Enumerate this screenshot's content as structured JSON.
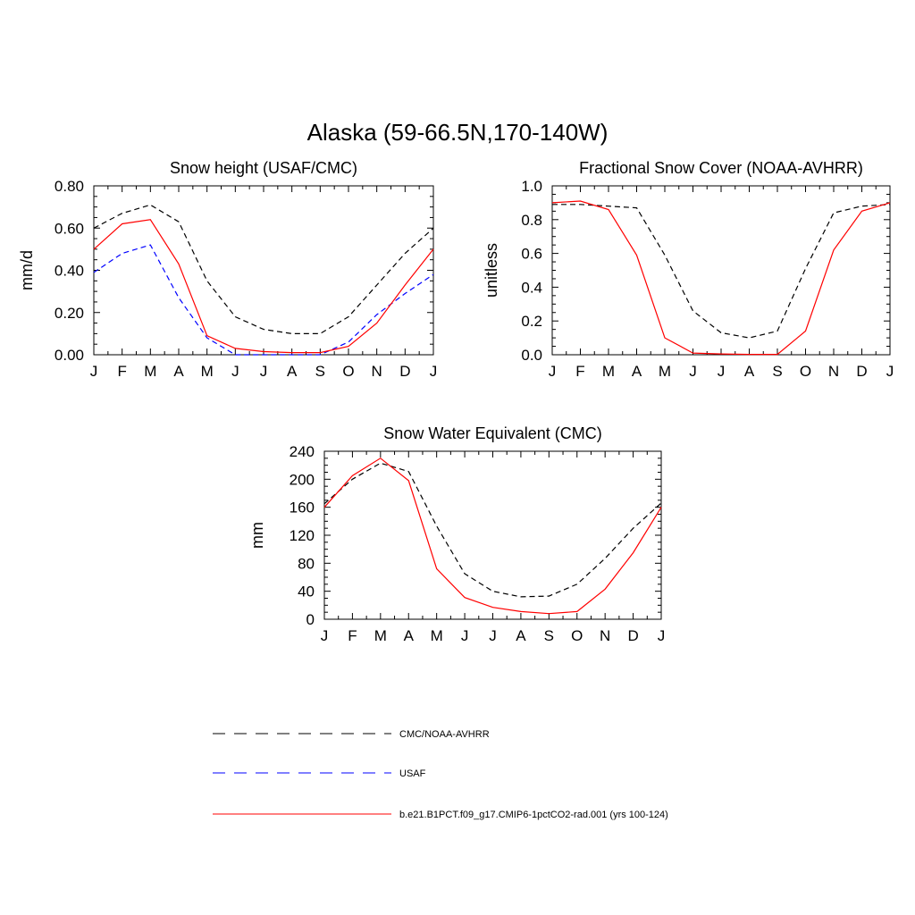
{
  "figure": {
    "title": "Alaska (59-66.5N,170-140W)"
  },
  "month_labels": [
    "J",
    "F",
    "M",
    "A",
    "M",
    "J",
    "J",
    "A",
    "S",
    "O",
    "N",
    "D",
    "J"
  ],
  "legend": {
    "entries": [
      {
        "label": "CMC/NOAA-AVHRR",
        "color": "#000000",
        "dash": "dashed"
      },
      {
        "label": "USAF",
        "color": "#0000ff",
        "dash": "dashed"
      },
      {
        "label": "b.e21.B1PCT.f09_g17.CMIP6-1pctCO2-rad.001 (yrs 100-124)",
        "color": "#ff0000",
        "dash": "solid"
      }
    ]
  },
  "chart_data": [
    {
      "type": "line",
      "title": "Snow height (USAF/CMC)",
      "ylabel": "mm/d",
      "xlabel": "",
      "x": [
        "J",
        "F",
        "M",
        "A",
        "M",
        "J",
        "J",
        "A",
        "S",
        "O",
        "N",
        "D",
        "J"
      ],
      "ylim": [
        0,
        0.8
      ],
      "yticks": [
        "0.00",
        "0.20",
        "0.40",
        "0.60",
        "0.80"
      ],
      "yticks_values": [
        0,
        0.2,
        0.4,
        0.6,
        0.8
      ],
      "series": [
        {
          "name": "CMC/NOAA-AVHRR",
          "color": "#000000",
          "dash": "dashed",
          "values": [
            0.6,
            0.67,
            0.71,
            0.63,
            0.35,
            0.18,
            0.12,
            0.1,
            0.1,
            0.18,
            0.33,
            0.48,
            0.6
          ]
        },
        {
          "name": "USAF",
          "color": "#0000ff",
          "dash": "dashed",
          "values": [
            0.39,
            0.48,
            0.52,
            0.27,
            0.08,
            0.0,
            0.0,
            0.0,
            0.0,
            0.06,
            0.19,
            0.29,
            0.38
          ]
        },
        {
          "name": "b.e21.B1PCT.f09_g17.CMIP6-1pctCO2-rad.001 (yrs 100-124)",
          "color": "#ff0000",
          "dash": "solid",
          "values": [
            0.5,
            0.62,
            0.64,
            0.43,
            0.09,
            0.03,
            0.015,
            0.01,
            0.01,
            0.04,
            0.15,
            0.33,
            0.5
          ]
        }
      ]
    },
    {
      "type": "line",
      "title": "Fractional Snow Cover (NOAA-AVHRR)",
      "ylabel": "unitless",
      "xlabel": "",
      "x": [
        "J",
        "F",
        "M",
        "A",
        "M",
        "J",
        "J",
        "A",
        "S",
        "O",
        "N",
        "D",
        "J"
      ],
      "ylim": [
        0,
        1.0
      ],
      "yticks": [
        "0.0",
        "0.2",
        "0.4",
        "0.6",
        "0.8",
        "1.0"
      ],
      "yticks_values": [
        0,
        0.2,
        0.4,
        0.6,
        0.8,
        1.0
      ],
      "series": [
        {
          "name": "CMC/NOAA-AVHRR",
          "color": "#000000",
          "dash": "dashed",
          "values": [
            0.89,
            0.89,
            0.88,
            0.87,
            0.59,
            0.26,
            0.13,
            0.1,
            0.14,
            0.51,
            0.84,
            0.88,
            0.89
          ]
        },
        {
          "name": "b.e21.B1PCT.f09_g17.CMIP6-1pctCO2-rad.001 (yrs 100-124)",
          "color": "#ff0000",
          "dash": "solid",
          "values": [
            0.9,
            0.91,
            0.86,
            0.59,
            0.1,
            0.01,
            0.005,
            0.002,
            0.002,
            0.14,
            0.62,
            0.85,
            0.9
          ]
        }
      ]
    },
    {
      "type": "line",
      "title": "Snow Water Equivalent (CMC)",
      "ylabel": "mm",
      "xlabel": "",
      "x": [
        "J",
        "F",
        "M",
        "A",
        "M",
        "J",
        "J",
        "A",
        "S",
        "O",
        "N",
        "D",
        "J"
      ],
      "ylim": [
        0,
        240
      ],
      "yticks": [
        "0",
        "40",
        "80",
        "120",
        "160",
        "200",
        "240"
      ],
      "yticks_values": [
        0,
        40,
        80,
        120,
        160,
        200,
        240
      ],
      "series": [
        {
          "name": "CMC/NOAA-AVHRR",
          "color": "#000000",
          "dash": "dashed",
          "values": [
            165,
            200,
            223,
            211,
            133,
            65,
            40,
            32,
            33,
            50,
            87,
            130,
            166
          ]
        },
        {
          "name": "b.e21.B1PCT.f09_g17.CMIP6-1pctCO2-rad.001 (yrs 100-124)",
          "color": "#ff0000",
          "dash": "solid",
          "values": [
            160,
            205,
            230,
            198,
            72,
            31,
            17,
            11,
            8,
            11,
            43,
            95,
            160
          ]
        }
      ]
    }
  ]
}
